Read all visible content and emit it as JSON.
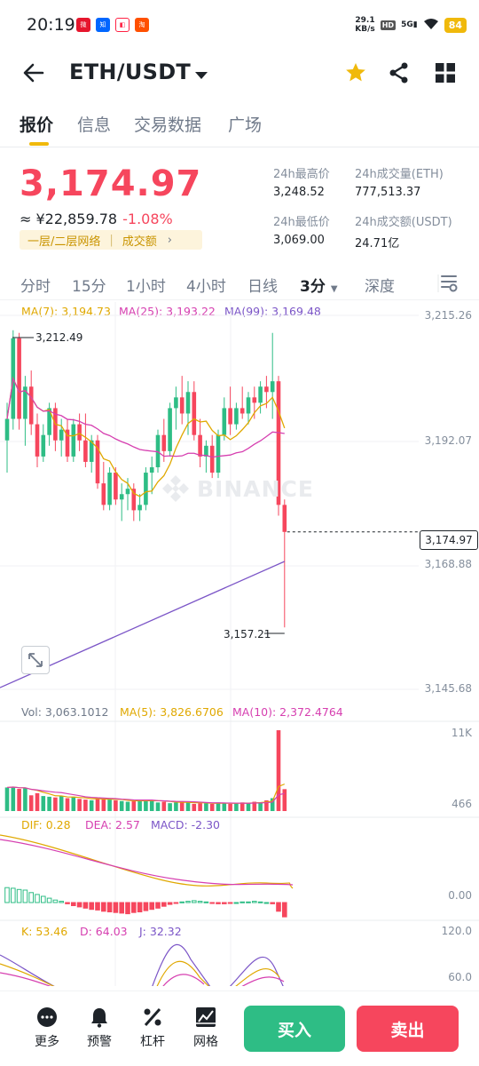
{
  "status_bar": {
    "time": "20:19",
    "net_speed_value": "29.1",
    "net_speed_unit": "KB/s",
    "hd": "HD",
    "network": "5G",
    "battery": "84"
  },
  "header": {
    "pair": "ETH/USDT"
  },
  "tabs": [
    {
      "label": "报价"
    },
    {
      "label": "信息"
    },
    {
      "label": "交易数据"
    },
    {
      "label": "广场"
    }
  ],
  "ticker": {
    "price": "3,174.97",
    "cny_value": "≈ ¥22,859.78",
    "change": "-1.08%",
    "tag_left": "一层/二层网络",
    "tag_right": "成交额",
    "high_label": "24h最高价",
    "high": "3,248.52",
    "vol_eth_label": "24h成交量(ETH)",
    "vol_eth": "777,513.37",
    "low_label": "24h最低价",
    "low": "3,069.00",
    "vol_usdt_label": "24h成交额(USDT)",
    "vol_usdt": "24.71亿"
  },
  "intervals": [
    {
      "label": "分时"
    },
    {
      "label": "15分"
    },
    {
      "label": "1小时"
    },
    {
      "label": "4小时"
    },
    {
      "label": "日线"
    },
    {
      "label": "3分"
    },
    {
      "label": "深度"
    }
  ],
  "ma_legend": {
    "ma7": "MA(7): 3,194.73",
    "ma25": "MA(25): 3,193.22",
    "ma99": "MA(99): 3,169.48"
  },
  "colors": {
    "up": "#2ebd85",
    "down": "#f6465d",
    "ma7": "#e0a800",
    "ma25": "#d63fb0",
    "ma99": "#7b55c7",
    "accent": "#f0b90b"
  },
  "chart_data": [
    {
      "type": "candlestick",
      "title": "",
      "y_axis_ticks": [
        "3,215.26",
        "3,192.07",
        "3,168.88",
        "3,145.68"
      ],
      "ylim": [
        3145.68,
        3215.26
      ],
      "current_price": "3,174.97",
      "high_marker": "3,212.49",
      "low_marker": "3,157.21",
      "candles": [
        {
          "o": 3192,
          "h": 3199,
          "l": 3186,
          "c": 3196
        },
        {
          "o": 3196,
          "h": 3212.49,
          "l": 3194,
          "c": 3211
        },
        {
          "o": 3211,
          "h": 3212,
          "l": 3194,
          "c": 3196
        },
        {
          "o": 3196,
          "h": 3204,
          "l": 3191,
          "c": 3202
        },
        {
          "o": 3202,
          "h": 3205,
          "l": 3193,
          "c": 3195
        },
        {
          "o": 3195,
          "h": 3197,
          "l": 3187,
          "c": 3189
        },
        {
          "o": 3189,
          "h": 3195,
          "l": 3188,
          "c": 3193
        },
        {
          "o": 3193,
          "h": 3199,
          "l": 3191,
          "c": 3198
        },
        {
          "o": 3198,
          "h": 3199,
          "l": 3190,
          "c": 3192
        },
        {
          "o": 3192,
          "h": 3196,
          "l": 3189,
          "c": 3194
        },
        {
          "o": 3194,
          "h": 3196,
          "l": 3188,
          "c": 3189
        },
        {
          "o": 3189,
          "h": 3196,
          "l": 3188,
          "c": 3195
        },
        {
          "o": 3195,
          "h": 3197,
          "l": 3190,
          "c": 3192
        },
        {
          "o": 3192,
          "h": 3197,
          "l": 3187,
          "c": 3188
        },
        {
          "o": 3188,
          "h": 3193,
          "l": 3186,
          "c": 3192
        },
        {
          "o": 3192,
          "h": 3193,
          "l": 3183,
          "c": 3184
        },
        {
          "o": 3184,
          "h": 3188,
          "l": 3179,
          "c": 3180
        },
        {
          "o": 3180,
          "h": 3187,
          "l": 3179,
          "c": 3186
        },
        {
          "o": 3186,
          "h": 3187,
          "l": 3180,
          "c": 3181
        },
        {
          "o": 3181,
          "h": 3184,
          "l": 3177,
          "c": 3182
        },
        {
          "o": 3182,
          "h": 3185,
          "l": 3179,
          "c": 3183
        },
        {
          "o": 3183,
          "h": 3184,
          "l": 3177,
          "c": 3179
        },
        {
          "o": 3179,
          "h": 3182,
          "l": 3177,
          "c": 3180
        },
        {
          "o": 3180,
          "h": 3187,
          "l": 3179,
          "c": 3186
        },
        {
          "o": 3186,
          "h": 3189,
          "l": 3182,
          "c": 3187
        },
        {
          "o": 3187,
          "h": 3194,
          "l": 3186,
          "c": 3193
        },
        {
          "o": 3193,
          "h": 3196,
          "l": 3188,
          "c": 3190
        },
        {
          "o": 3190,
          "h": 3199,
          "l": 3189,
          "c": 3198
        },
        {
          "o": 3198,
          "h": 3202,
          "l": 3194,
          "c": 3200
        },
        {
          "o": 3200,
          "h": 3204,
          "l": 3195,
          "c": 3197
        },
        {
          "o": 3197,
          "h": 3203,
          "l": 3193,
          "c": 3201
        },
        {
          "o": 3201,
          "h": 3203,
          "l": 3192,
          "c": 3193
        },
        {
          "o": 3193,
          "h": 3196,
          "l": 3187,
          "c": 3189
        },
        {
          "o": 3189,
          "h": 3192,
          "l": 3186,
          "c": 3191
        },
        {
          "o": 3191,
          "h": 3193,
          "l": 3185,
          "c": 3186
        },
        {
          "o": 3186,
          "h": 3194,
          "l": 3185,
          "c": 3193
        },
        {
          "o": 3193,
          "h": 3200,
          "l": 3192,
          "c": 3198
        },
        {
          "o": 3198,
          "h": 3202,
          "l": 3193,
          "c": 3195
        },
        {
          "o": 3195,
          "h": 3199,
          "l": 3194,
          "c": 3198
        },
        {
          "o": 3198,
          "h": 3202,
          "l": 3196,
          "c": 3197
        },
        {
          "o": 3197,
          "h": 3201,
          "l": 3195,
          "c": 3200
        },
        {
          "o": 3200,
          "h": 3202,
          "l": 3196,
          "c": 3199
        },
        {
          "o": 3199,
          "h": 3203,
          "l": 3197,
          "c": 3202
        },
        {
          "o": 3202,
          "h": 3204,
          "l": 3198,
          "c": 3201
        },
        {
          "o": 3201,
          "h": 3212,
          "l": 3196,
          "c": 3203
        },
        {
          "o": 3203,
          "h": 3204,
          "l": 3178,
          "c": 3180
        },
        {
          "o": 3180,
          "h": 3181,
          "l": 3157.21,
          "c": 3174.97
        }
      ]
    },
    {
      "type": "bar",
      "title": "",
      "y_axis_ticks": [
        "11K",
        "466"
      ],
      "ylim": [
        0,
        11800
      ],
      "legend": {
        "vol": "Vol: 3,063.1012",
        "ma5": "MA(5): 3,826.6706",
        "ma10": "MA(10): 2,372.4764"
      },
      "series": [
        {
          "values": [
            3300,
            3400,
            3100,
            3200,
            2200,
            2500,
            2100,
            2000,
            1900,
            2100,
            1800,
            2000,
            1700,
            1600,
            1500,
            1900,
            1700,
            1600,
            1500,
            1400,
            1300,
            1400,
            1500,
            1600,
            1500,
            1200,
            1300,
            1100,
            1200,
            1300,
            1200,
            1000,
            1100,
            1100,
            1000,
            1200,
            1100,
            1000,
            1100,
            1200,
            1100,
            1300,
            1200,
            1500,
            1800,
            11300,
            3063
          ]
        }
      ]
    },
    {
      "type": "bar",
      "title": "",
      "y_axis_ticks": [
        "0.00"
      ],
      "legend": {
        "dif": "DIF: 0.28",
        "dea": "DEA: 2.57",
        "macd": "MACD: -2.30"
      },
      "series": [
        {
          "values": [
            2.4,
            2.3,
            2.1,
            2.0,
            1.6,
            1.3,
            1.0,
            0.7,
            0.4,
            0.2,
            -0.2,
            -0.5,
            -0.7,
            -0.9,
            -1.1,
            -1.2,
            -1.4,
            -1.5,
            -1.6,
            -1.7,
            -1.8,
            -1.6,
            -1.5,
            -1.3,
            -1.1,
            -0.9,
            -0.6,
            -0.3,
            -0.1,
            0.1,
            0.2,
            0.3,
            0.2,
            0.1,
            -0.1,
            -0.2,
            -0.2,
            -0.1,
            0.0,
            0.1,
            0.1,
            0.2,
            0.1,
            0.0,
            -0.2,
            -1.4,
            -2.3
          ]
        }
      ]
    },
    {
      "type": "line",
      "title": "",
      "y_axis_ticks": [
        "120.0",
        "60.0"
      ],
      "legend": {
        "k": "K: 53.46",
        "d": "D: 64.03",
        "j": "J: 32.32"
      }
    }
  ],
  "bottom_bar": {
    "more": "更多",
    "alert": "预警",
    "margin": "杠杆",
    "grid": "网格",
    "buy": "买入",
    "sell": "卖出"
  }
}
